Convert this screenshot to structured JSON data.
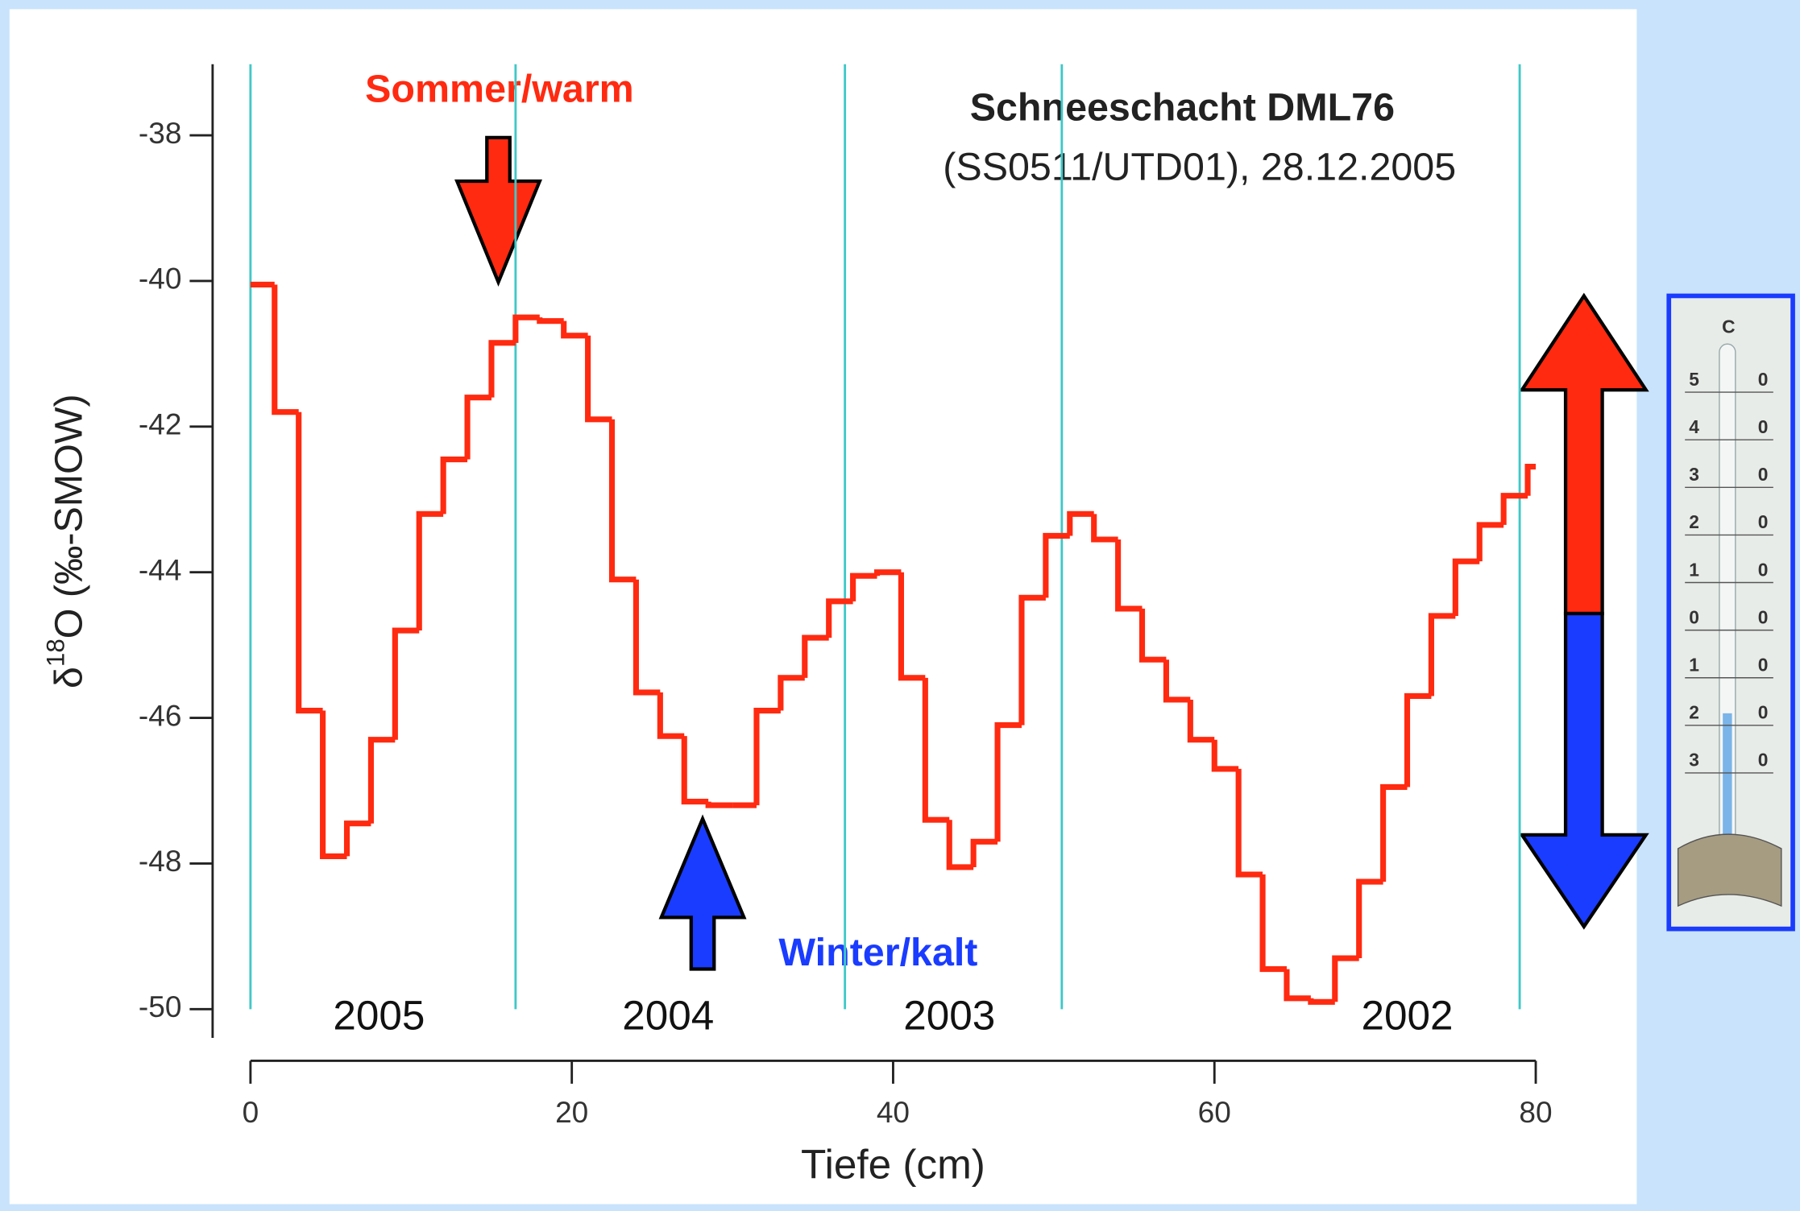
{
  "chart_data": {
    "type": "step",
    "title": "Schneeschacht DML76",
    "subtitle": "(SS0511/UTD01), 28.12.2005",
    "y_label": {
      "symbol": "δ",
      "superscript": "18",
      "rest": "O (‰-SMOW)"
    },
    "x_label": "Tiefe (cm)",
    "annotations": {
      "summer": "Sommer/warm",
      "winter": "Winter/kalt"
    },
    "year_boundaries": [
      0,
      16.5,
      37,
      50.5,
      79
    ],
    "year_labels": [
      {
        "text": "2005",
        "x": 8
      },
      {
        "text": "2004",
        "x": 26
      },
      {
        "text": "2003",
        "x": 43.5
      },
      {
        "text": "2002",
        "x": 72
      }
    ],
    "x": [
      0,
      1.5,
      3,
      4.5,
      6,
      7.5,
      9,
      10.5,
      12,
      13.5,
      15,
      16.5,
      18,
      19.5,
      21,
      22.5,
      24,
      25.5,
      27,
      28.5,
      30,
      31.5,
      33,
      34.5,
      36,
      37.5,
      39,
      40.5,
      42,
      43.5,
      45,
      46.5,
      48,
      49.5,
      51,
      52.5,
      54,
      55.5,
      57,
      58.5,
      60,
      61.5,
      63,
      64.5,
      66,
      67.5,
      69,
      70.5,
      72,
      73.5,
      75,
      76.5,
      78,
      79.5
    ],
    "series": [
      {
        "color": "#ff2a10",
        "values": [
          -40.05,
          -41.8,
          -45.9,
          -47.9,
          -47.45,
          -46.3,
          -44.8,
          -43.2,
          -42.45,
          -41.6,
          -40.85,
          -40.5,
          -40.55,
          -40.75,
          -41.9,
          -44.1,
          -45.65,
          -46.25,
          -47.15,
          -47.2,
          -47.2,
          -45.9,
          -45.45,
          -44.9,
          -44.4,
          -44.05,
          -44.0,
          -45.45,
          -47.4,
          -48.05,
          -47.7,
          -46.1,
          -44.35,
          -43.5,
          -43.2,
          -43.55,
          -44.5,
          -45.2,
          -45.75,
          -46.3,
          -46.7,
          -48.15,
          -49.45,
          -49.85,
          -49.9,
          -49.3,
          -48.25,
          -46.95,
          -45.7,
          -44.6,
          -43.85,
          -43.35,
          -42.95,
          -42.55
        ]
      }
    ],
    "xlim": [
      0,
      80
    ],
    "xticks": [
      0,
      20,
      40,
      60,
      80
    ],
    "ylim": [
      -38,
      -50
    ],
    "yticks": [
      -38,
      -40,
      -42,
      -44,
      -46,
      -48,
      -50
    ],
    "boundary_color": "#40c8c8"
  },
  "thermometer": {
    "unit": "C",
    "scale": [
      "5",
      "4",
      "3",
      "2",
      "1",
      "0",
      "1",
      "2",
      "3"
    ],
    "zeros": [
      "0",
      "0",
      "0",
      "0",
      "0",
      "0",
      "0",
      "0",
      "0"
    ]
  }
}
